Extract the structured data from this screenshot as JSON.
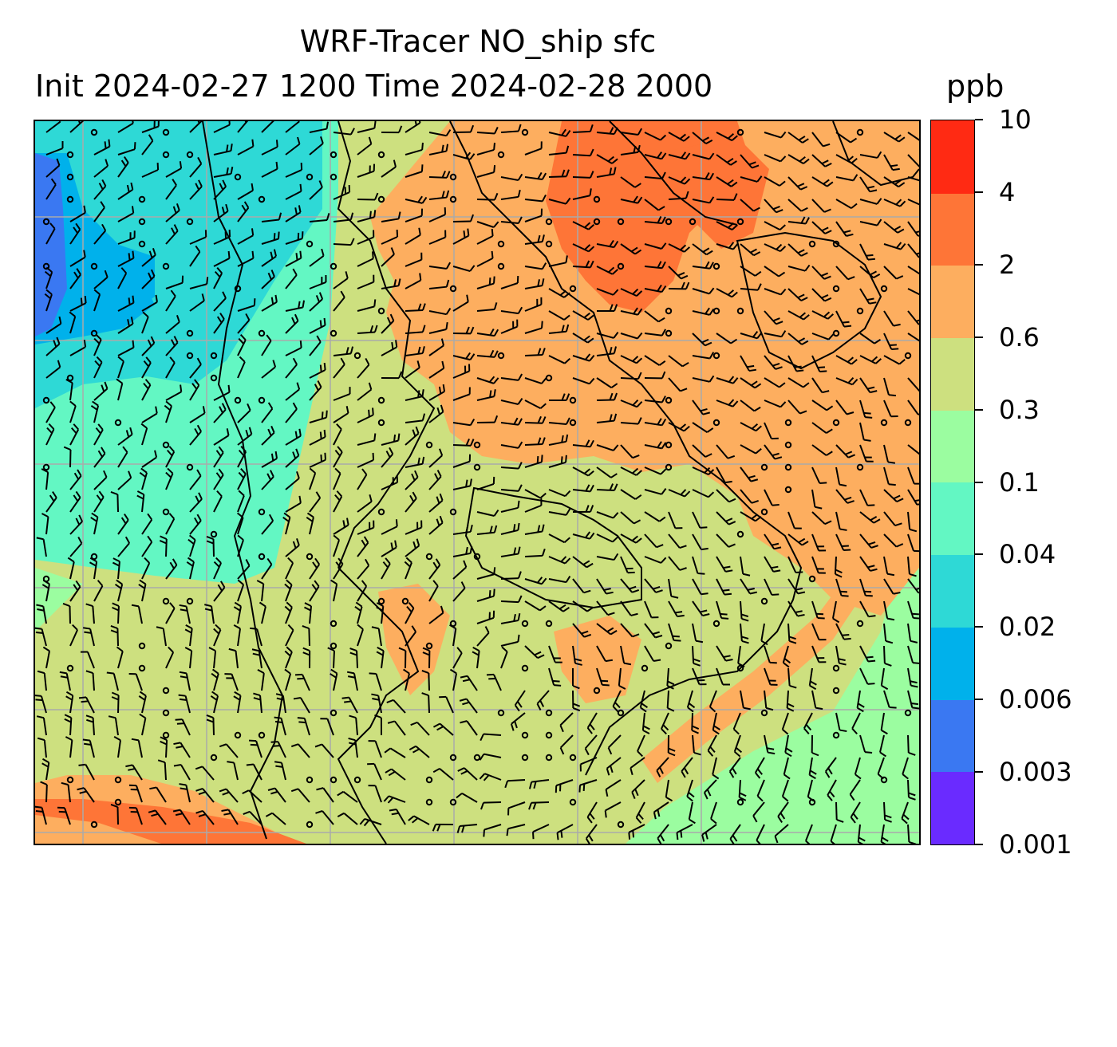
{
  "title": {
    "line1": "WRF-Tracer NO_ship sfc",
    "line2": "Init 2024-02-27 1200 Time 2024-02-28 2000",
    "unit": "ppb"
  },
  "colorbar": {
    "labels": [
      "0.001",
      "0.003",
      "0.006",
      "0.02",
      "0.04",
      "0.1",
      "0.3",
      "0.6",
      "2",
      "4",
      "10"
    ],
    "colors": [
      "#6a2bff",
      "#3a78f2",
      "#00b1eb",
      "#2ed9d6",
      "#63f7c3",
      "#9bfda0",
      "#cde07f",
      "#fdae5f",
      "#fe7537",
      "#ff2a13"
    ]
  },
  "map": {
    "background_level_color": "#cde07f",
    "gridline_color": "#aaaaaa",
    "coastline_color": "#000000",
    "wind_barbs": "black"
  }
}
